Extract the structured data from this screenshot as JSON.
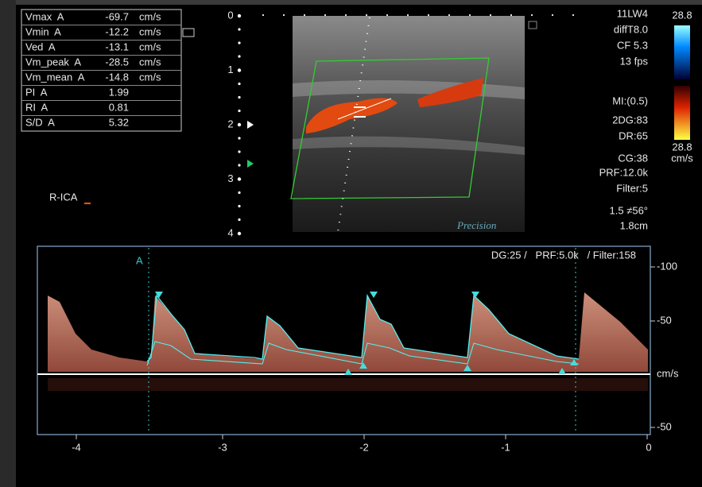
{
  "measurements": {
    "rows": [
      [
        "Vmax  A",
        "-69.7",
        "cm/s"
      ],
      [
        "Vmin  A",
        "-12.2",
        "cm/s"
      ],
      [
        "Ved  A",
        "-13.1",
        "cm/s"
      ],
      [
        "Vm_peak  A",
        "-28.5",
        "cm/s"
      ],
      [
        "Vm_mean  A",
        "-14.8",
        "cm/s"
      ],
      [
        "PI  A",
        "1.99"
      ],
      [
        "RI  A",
        "0.81"
      ],
      [
        "S/D  A",
        "5.32"
      ]
    ]
  },
  "depth_scale": {
    "labels": [
      "0",
      "1",
      "2",
      "3",
      "4"
    ]
  },
  "vessel_label": "R-ICA",
  "logo": "Precision",
  "settings": {
    "top": [
      "11LW4",
      "diffT8.0",
      "CF 5.3",
      "13 fps"
    ],
    "bottom": [
      "MI:(0.5)",
      "2DG:83",
      "DR:65",
      "CG:38",
      "PRF:12.0k",
      "Filter:5",
      "1.5 ≠56°",
      "1.8cm"
    ]
  },
  "color_bar": {
    "top": "28.8",
    "bottom": "28.8",
    "unit": "cm/s"
  },
  "doppler": {
    "header": "DG:25 /   PRF:5.0k   / Filter:158",
    "marker": "A",
    "y_labels": [
      "-100",
      "-50",
      "cm/s",
      "-50"
    ],
    "x_labels": [
      "-4",
      "-3",
      "-2",
      "-1",
      "0"
    ]
  }
}
